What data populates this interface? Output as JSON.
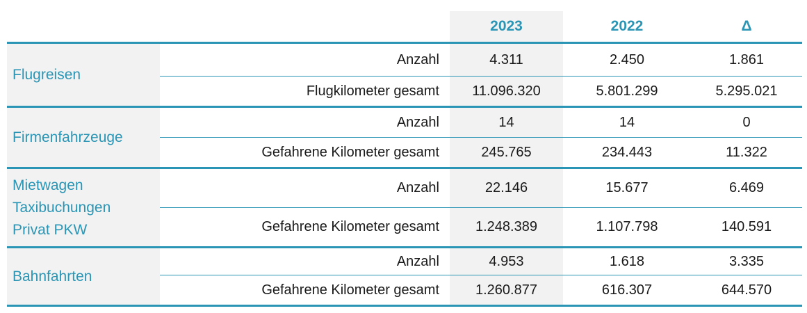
{
  "header": {
    "col_2023": "2023",
    "col_2022": "2022",
    "col_delta": "Δ"
  },
  "groups": [
    {
      "label_lines": [
        "Flugreisen"
      ],
      "rows": [
        {
          "label": "Anzahl",
          "v2023": "4.311",
          "v2022": "2.450",
          "delta": "1.861"
        },
        {
          "label": "Flugkilometer gesamt",
          "v2023": "11.096.320",
          "v2022": "5.801.299",
          "delta": "5.295.021"
        }
      ]
    },
    {
      "label_lines": [
        "Firmenfahrzeuge"
      ],
      "rows": [
        {
          "label": "Anzahl",
          "v2023": "14",
          "v2022": "14",
          "delta": "0"
        },
        {
          "label": "Gefahrene Kilometer gesamt",
          "v2023": "245.765",
          "v2022": "234.443",
          "delta": "11.322"
        }
      ]
    },
    {
      "label_lines": [
        "Mietwagen",
        "Taxibuchungen",
        "Privat PKW"
      ],
      "rows": [
        {
          "label": "Anzahl",
          "v2023": "22.146",
          "v2022": "15.677",
          "delta": "6.469"
        },
        {
          "label": "Gefahrene Kilometer gesamt",
          "v2023": "1.248.389",
          "v2022": "1.107.798",
          "delta": "140.591"
        }
      ]
    },
    {
      "label_lines": [
        "Bahnfahrten"
      ],
      "rows": [
        {
          "label": "Anzahl",
          "v2023": "4.953",
          "v2022": "1.618",
          "delta": "3.335"
        },
        {
          "label": "Gefahrene Kilometer gesamt",
          "v2023": "1.260.877",
          "v2022": "616.307",
          "delta": "644.570"
        }
      ]
    }
  ]
}
